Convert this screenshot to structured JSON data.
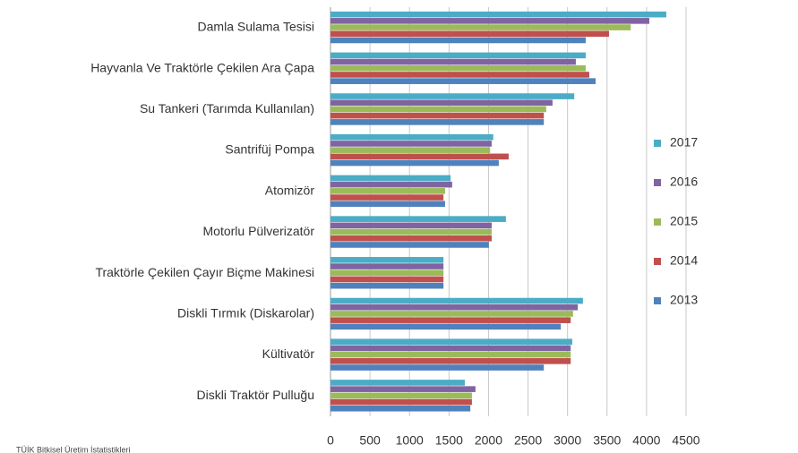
{
  "chart_data": {
    "type": "barh",
    "categories": [
      "Damla Sulama Tesisi",
      "Hayvanla Ve Traktörle Çekilen Ara Çapa",
      "Su Tankeri (Tarımda Kullanılan)",
      "Santrifüj Pompa",
      "Atomizör",
      "Motorlu Pülverizatör",
      "Traktörle Çekilen Çayır Biçme Makinesi",
      "Diskli Tırmık (Diskarolar)",
      "Kültivatör",
      "Diskli Traktör Pulluğu"
    ],
    "series": [
      {
        "name": "2017",
        "color": "#4bacc6",
        "values": [
          4250,
          3230,
          3085,
          2060,
          1520,
          2220,
          1430,
          3195,
          3060,
          1700
        ]
      },
      {
        "name": "2016",
        "color": "#8064a2",
        "values": [
          4035,
          3105,
          2810,
          2040,
          1540,
          2040,
          1430,
          3130,
          3040,
          1835
        ]
      },
      {
        "name": "2015",
        "color": "#9bbb59",
        "values": [
          3800,
          3230,
          2730,
          2020,
          1450,
          2040,
          1430,
          3070,
          3040,
          1790
        ]
      },
      {
        "name": "2014",
        "color": "#c0504d",
        "values": [
          3525,
          3275,
          2700,
          2255,
          1430,
          2040,
          1430,
          3040,
          3040,
          1790
        ]
      },
      {
        "name": "2013",
        "color": "#4f81bd",
        "values": [
          3230,
          3355,
          2700,
          2130,
          1450,
          2005,
          1430,
          2915,
          2700,
          1770
        ]
      }
    ],
    "xlim": [
      0,
      4500
    ],
    "xticks": [
      0,
      500,
      1000,
      1500,
      2000,
      2500,
      3000,
      3500,
      4000,
      4500
    ],
    "grid": true,
    "legend": "right",
    "source": "TÜİK Bitkisel Üretim İstatistikleri"
  }
}
